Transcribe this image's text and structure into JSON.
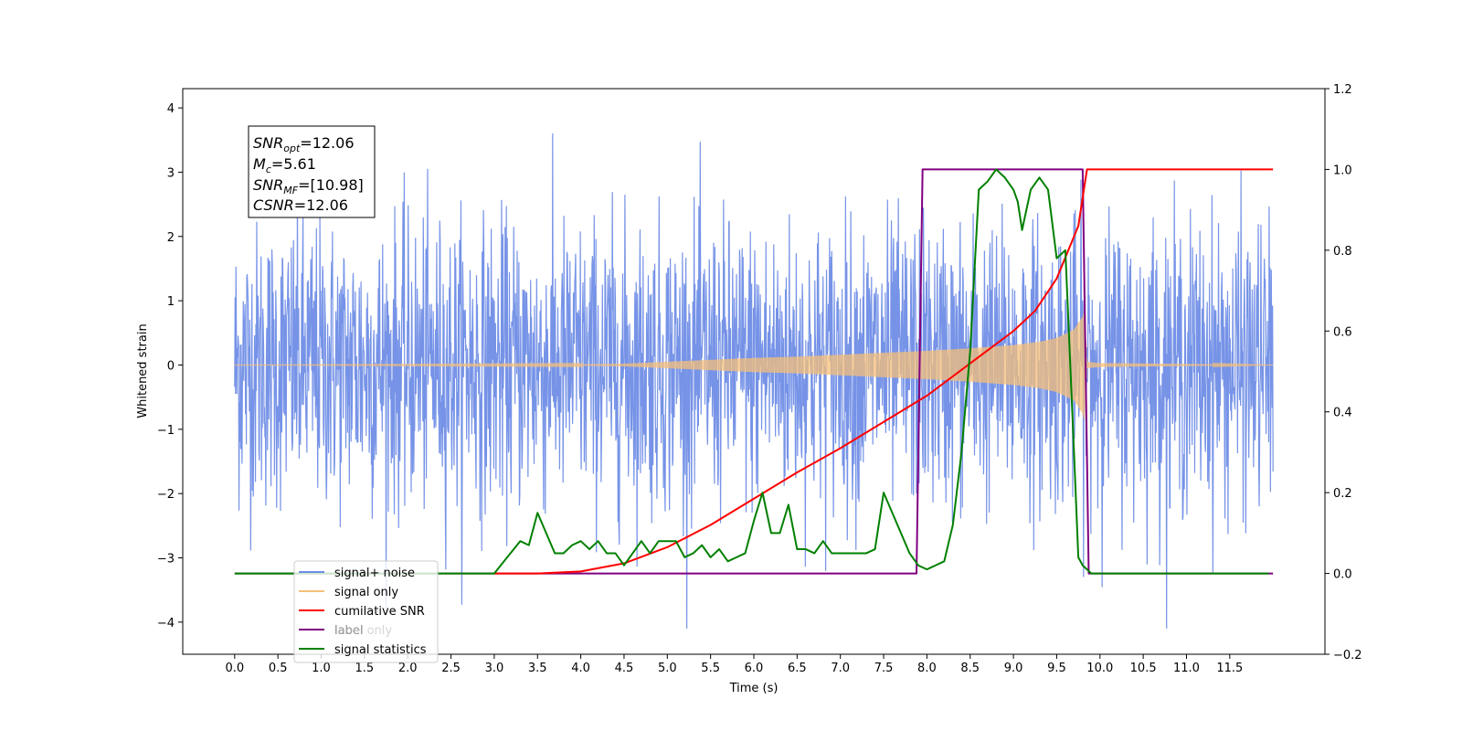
{
  "chart_data": {
    "type": "line",
    "xlabel": "Time (s)",
    "ylabel_left": "Whitened strain",
    "ylabel_right": "",
    "xlim": [
      -0.6,
      12.6
    ],
    "ylim_left": [
      -4.5,
      4.3
    ],
    "ylim_right": [
      -0.2,
      1.2
    ],
    "x_ticks": [
      "0.0",
      "0.5",
      "1.0",
      "1.5",
      "2.0",
      "2.5",
      "3.0",
      "3.5",
      "4.0",
      "4.5",
      "5.0",
      "5.5",
      "6.0",
      "6.5",
      "7.0",
      "7.5",
      "8.0",
      "8.5",
      "9.0",
      "9.5",
      "10.0",
      "10.5",
      "11.0",
      "11.5"
    ],
    "y_ticks_left": [
      "4",
      "3",
      "2",
      "1",
      "0",
      "−1",
      "−2",
      "−3",
      "−4"
    ],
    "y_ticks_right": [
      "1.2",
      "1.0",
      "0.8",
      "0.6",
      "0.4",
      "0.2",
      "0.0",
      "−0.2"
    ],
    "grid": false,
    "legend_position": "lower-left",
    "annotation": {
      "snr_opt": {
        "name": "SNR",
        "sub": "opt",
        "value": "=12.06"
      },
      "mc": {
        "name": "M",
        "sub": "c",
        "value": "=5.61"
      },
      "snr_mf": {
        "name": "SNR",
        "sub": "MF",
        "value": "=[10.98]"
      },
      "csnr": {
        "name": "CSNR",
        "sub": "",
        "value": "=12.06"
      }
    },
    "series": [
      {
        "name": "signal+ noise",
        "axis": "left",
        "color": "#6f8de6",
        "x_range": [
          0.0,
          12.0
        ],
        "noise_std": 1.1,
        "noise_min_approx": -4.1,
        "noise_max_approx": 3.9
      },
      {
        "name": "signal only",
        "axis": "left",
        "color": "#f5bf7a",
        "x_range": [
          0.0,
          12.0
        ],
        "envelope": {
          "x": [
            0.0,
            4.0,
            4.5,
            5.0,
            5.5,
            6.0,
            6.5,
            7.0,
            7.5,
            8.0,
            8.5,
            9.0,
            9.3,
            9.5,
            9.7,
            9.8,
            9.82,
            9.85,
            10.0,
            12.0
          ],
          "amp": [
            0.0,
            0.01,
            0.02,
            0.05,
            0.08,
            0.11,
            0.13,
            0.16,
            0.19,
            0.22,
            0.26,
            0.31,
            0.36,
            0.42,
            0.55,
            0.75,
            0.85,
            0.05,
            0.03,
            0.0
          ]
        }
      },
      {
        "name": "cumilative SNR",
        "axis": "right",
        "color": "#ff0000",
        "x": [
          3.0,
          3.5,
          4.0,
          4.5,
          5.0,
          5.5,
          6.0,
          6.5,
          7.0,
          7.5,
          8.0,
          8.5,
          9.0,
          9.25,
          9.5,
          9.75,
          9.85,
          12.0
        ],
        "y": [
          0.0,
          0.0,
          0.005,
          0.025,
          0.065,
          0.12,
          0.185,
          0.25,
          0.31,
          0.375,
          0.44,
          0.52,
          0.6,
          0.65,
          0.73,
          0.86,
          1.0,
          1.0
        ]
      },
      {
        "name": "label",
        "axis": "right",
        "color": "#800080",
        "x": [
          0.0,
          7.88,
          7.95,
          9.8,
          9.87,
          12.0
        ],
        "y": [
          0.0,
          0.0,
          1.0,
          1.0,
          0.0,
          0.0
        ]
      },
      {
        "name": "label only",
        "axis": "right",
        "color": "#cccccc",
        "x": [],
        "y": []
      },
      {
        "name": "signal statistics",
        "axis": "right",
        "color": "#008000",
        "x": [
          0.0,
          3.0,
          3.15,
          3.3,
          3.4,
          3.5,
          3.6,
          3.7,
          3.8,
          3.9,
          4.0,
          4.1,
          4.2,
          4.3,
          4.4,
          4.5,
          4.6,
          4.7,
          4.8,
          4.9,
          5.0,
          5.1,
          5.2,
          5.3,
          5.4,
          5.5,
          5.6,
          5.7,
          5.8,
          5.9,
          6.0,
          6.1,
          6.2,
          6.3,
          6.4,
          6.5,
          6.6,
          6.7,
          6.8,
          6.9,
          7.0,
          7.1,
          7.2,
          7.3,
          7.4,
          7.5,
          7.6,
          7.7,
          7.8,
          7.9,
          8.0,
          8.1,
          8.2,
          8.3,
          8.4,
          8.5,
          8.6,
          8.7,
          8.8,
          8.9,
          9.0,
          9.05,
          9.1,
          9.2,
          9.3,
          9.4,
          9.5,
          9.6,
          9.7,
          9.75,
          9.8,
          9.85,
          9.9,
          10.0,
          10.1,
          10.2,
          10.5,
          11.0,
          11.5,
          11.95
        ],
        "y": [
          0.0,
          0.0,
          0.04,
          0.08,
          0.07,
          0.15,
          0.1,
          0.05,
          0.05,
          0.07,
          0.08,
          0.06,
          0.08,
          0.05,
          0.05,
          0.02,
          0.05,
          0.08,
          0.05,
          0.08,
          0.08,
          0.08,
          0.04,
          0.05,
          0.07,
          0.04,
          0.06,
          0.03,
          0.04,
          0.05,
          0.13,
          0.2,
          0.1,
          0.1,
          0.17,
          0.06,
          0.06,
          0.05,
          0.08,
          0.05,
          0.05,
          0.05,
          0.05,
          0.05,
          0.06,
          0.2,
          0.15,
          0.1,
          0.05,
          0.02,
          0.01,
          0.02,
          0.03,
          0.12,
          0.3,
          0.55,
          0.95,
          0.97,
          1.0,
          0.98,
          0.95,
          0.92,
          0.85,
          0.95,
          0.98,
          0.95,
          0.78,
          0.8,
          0.3,
          0.04,
          0.02,
          0.01,
          0.0,
          0.0,
          0.0,
          0.0,
          0.0,
          0.0,
          0.0,
          0.0
        ]
      }
    ]
  }
}
